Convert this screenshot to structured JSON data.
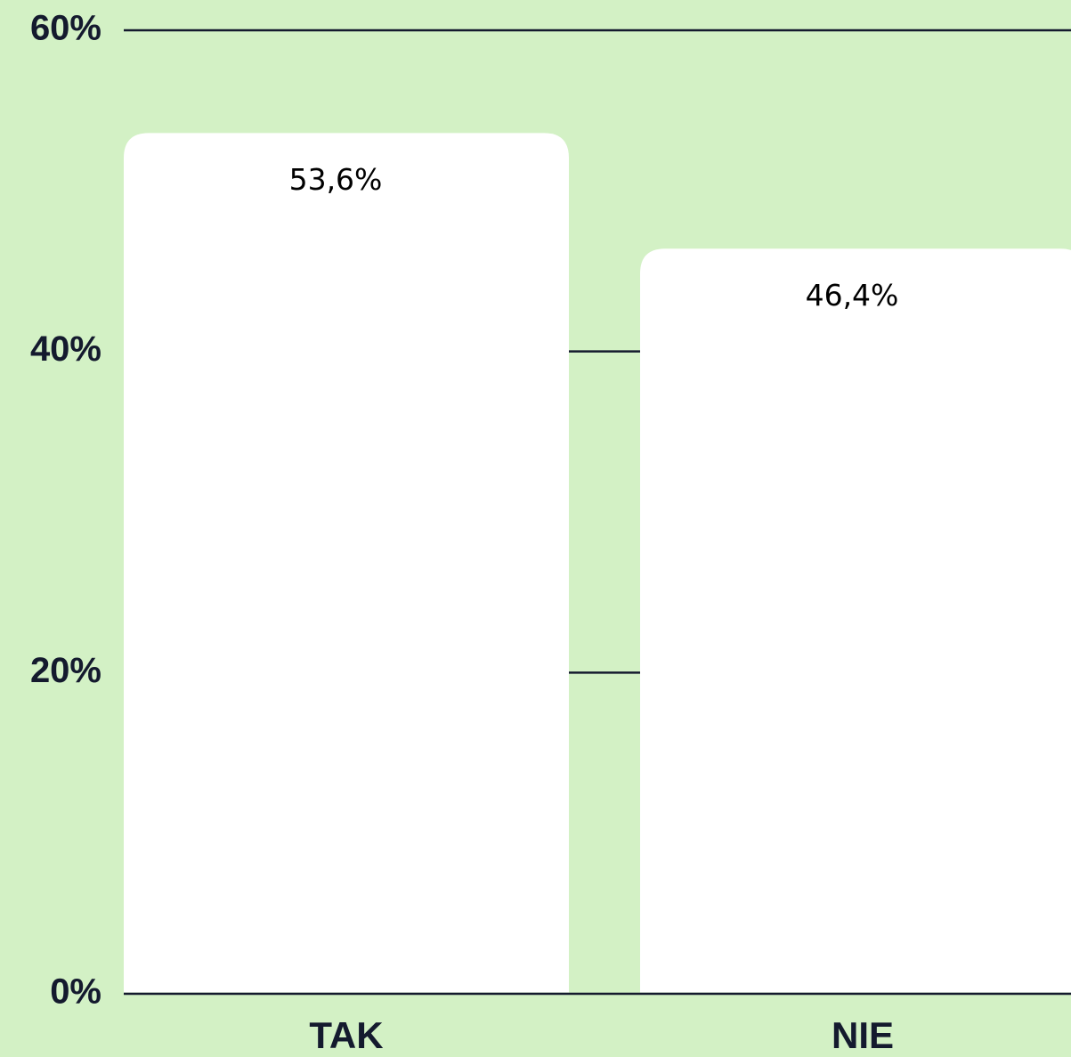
{
  "chart_data": {
    "type": "bar",
    "categories": [
      "TAK",
      "NIE"
    ],
    "values": [
      53.6,
      46.4
    ],
    "value_labels": [
      "53,6%",
      "46,4%"
    ],
    "color": "#ffffff",
    "ylim": [
      0,
      60
    ],
    "yticks": [
      {
        "value": 0,
        "label": "0%"
      },
      {
        "value": 20,
        "label": "20%"
      },
      {
        "value": 40,
        "label": "40%"
      },
      {
        "value": 60,
        "label": "60%"
      }
    ],
    "grid": true
  }
}
